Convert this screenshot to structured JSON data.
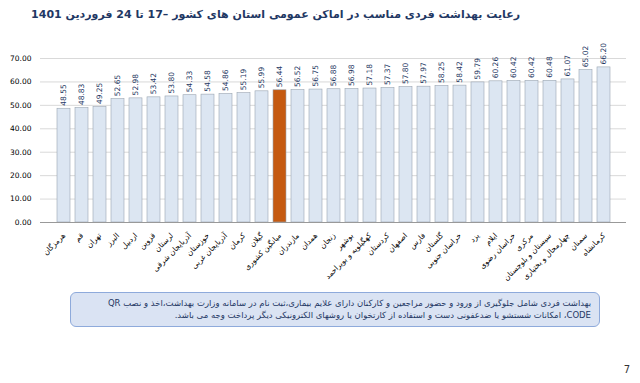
{
  "chart_data": {
    "type": "bar",
    "title": "رعایت بهداشت فردی مناسب در اماکن عمومی استان های کشور –17 تا 24 فروردین 1401",
    "categories": [
      "هرمزگان",
      "قم",
      "تهران",
      "البرز",
      "اردبیل",
      "قزوین",
      "لرستان",
      "آذربایجان شرقی",
      "خوزستان",
      "آذربایجان غربی",
      "کرمان",
      "گیلان",
      "میانگین کشوری",
      "مازندران",
      "همدان",
      "زنجان",
      "بوشهر",
      "کهگیلویه و بویراحمد",
      "کردستان",
      "اصفهان",
      "فارس",
      "گلستان",
      "خراسان جنوبی",
      "یزد",
      "ایلام",
      "خراسان رضوی",
      "مرکزی",
      "سیستان و بلوچستان",
      "چهارمحال و بختیاری",
      "سمنان",
      "کرمانشاه"
    ],
    "values": [
      48.55,
      48.83,
      49.25,
      52.65,
      52.98,
      53.42,
      53.8,
      54.33,
      54.58,
      54.86,
      55.19,
      55.99,
      56.44,
      56.52,
      56.75,
      56.88,
      56.98,
      57.18,
      57.37,
      57.8,
      57.97,
      58.25,
      58.42,
      59.79,
      60.26,
      60.42,
      60.42,
      60.48,
      61.07,
      65.02,
      66.2
    ],
    "value_labels": [
      "48.55",
      "48.83",
      "49.25",
      "52.65",
      "52.98",
      "53.42",
      "53.80",
      "54.33",
      "54.58",
      "54.86",
      "55.19",
      "55.99",
      "56.44",
      "56.52",
      "56.75",
      "56.88",
      "56.98",
      "57.18",
      "57.37",
      "57.80",
      "57.97",
      "58.25",
      "58.42",
      "59.79",
      "60.26",
      "60.42",
      "60.42",
      "60.48",
      "61.07",
      "65.02",
      "66.20"
    ],
    "colors": [
      "#dce6f2",
      "#dce6f2",
      "#dce6f2",
      "#dce6f2",
      "#dce6f2",
      "#dce6f2",
      "#dce6f2",
      "#dce6f2",
      "#dce6f2",
      "#dce6f2",
      "#dce6f2",
      "#dce6f2",
      "#c55a11",
      "#dce6f2",
      "#dce6f2",
      "#dce6f2",
      "#dce6f2",
      "#dce6f2",
      "#dce6f2",
      "#dce6f2",
      "#dce6f2",
      "#dce6f2",
      "#dce6f2",
      "#dce6f2",
      "#dce6f2",
      "#dce6f2",
      "#dce6f2",
      "#dce6f2",
      "#dce6f2",
      "#dce6f2",
      "#dce6f2"
    ],
    "ylim": [
      0,
      70
    ],
    "yticks": [
      {
        "value": 0,
        "label": "0.00"
      },
      {
        "value": 10,
        "label": "10.00"
      },
      {
        "value": 20,
        "label": "20.00"
      },
      {
        "value": 30,
        "label": "30.00"
      },
      {
        "value": 40,
        "label": "40.00"
      },
      {
        "value": 50,
        "label": "50.00"
      },
      {
        "value": 60,
        "label": "60.00"
      },
      {
        "value": 70,
        "label": "70.00"
      }
    ],
    "grid": true,
    "data_labels": true
  },
  "note": "بهداشت فردی شامل جلوگیری از ورود و حضور مراجعین و کارکنان دارای علایم بیماری،ثبت نام در سامانه وزارت بهداشت،اخذ و نصب QR CODE، امکانات شستشو یا ضدعفونی دست و استفاده از کارتخوان یا روشهای الکترونیکی دیگر پرداخت وجه می باشد.",
  "page_number": "7"
}
